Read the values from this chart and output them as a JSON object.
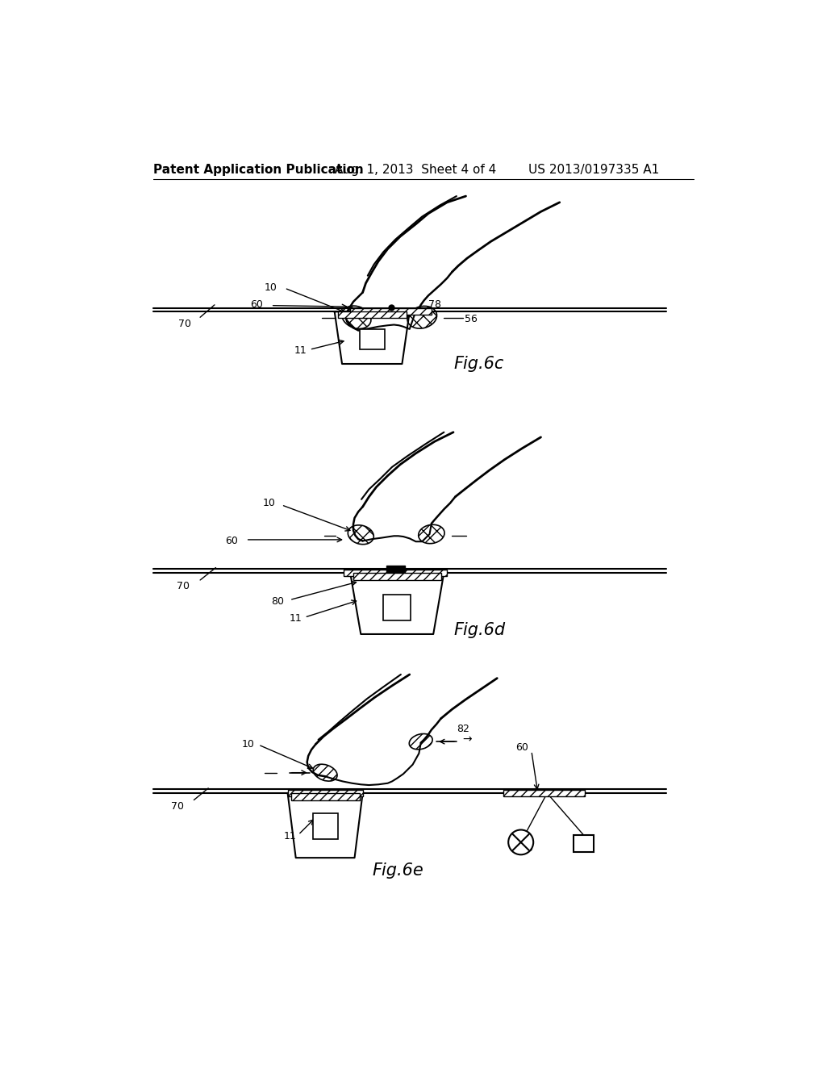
{
  "header_left": "Patent Application Publication",
  "header_mid": "Aug. 1, 2013  Sheet 4 of 4",
  "header_right": "US 2013/0197335 A1",
  "bg_color": "#ffffff"
}
